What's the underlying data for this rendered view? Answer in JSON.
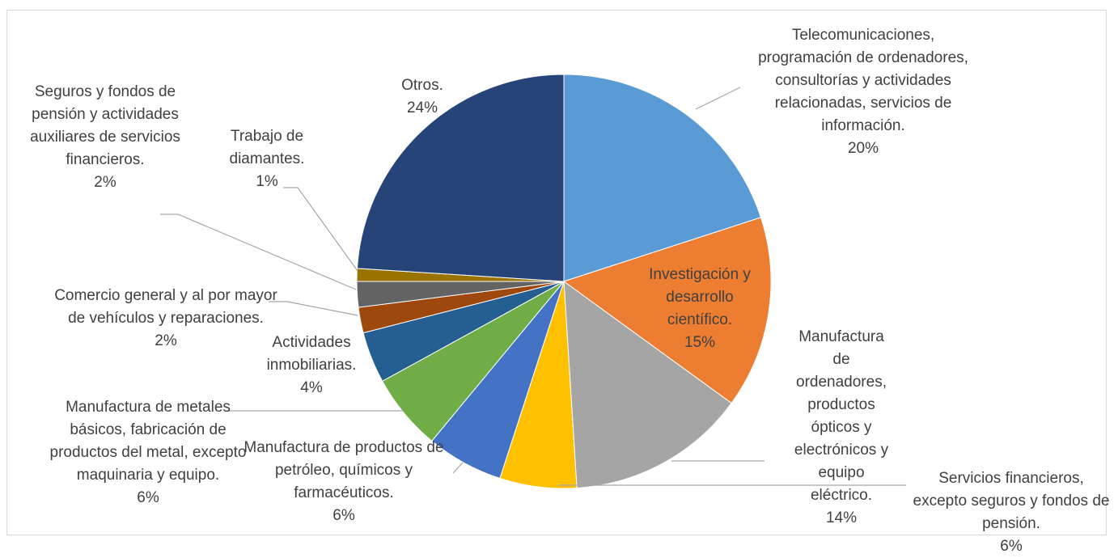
{
  "chart_data": {
    "type": "pie",
    "categories": [
      "Telecomunicaciones, programación de ordenadores, consultorías y actividades relacionadas, servicios de información.",
      "Investigación y desarrollo científico.",
      "Manufactura de ordenadores, productos ópticos y electrónicos y equipo eléctrico.",
      "Servicios financieros, excepto seguros y fondos de pensión.",
      "Manufactura de productos de petróleo, químicos y farmacéuticos.",
      "Manufactura de metales básicos, fabricación de productos del metal, excepto maquinaria y equipo.",
      "Actividades inmobiliarias.",
      "Comercio general y al por mayor de vehículos y reparaciones.",
      "Seguros y fondos de pensión y actividades auxiliares de servicios financieros.",
      "Trabajo de diamantes.",
      "Otros."
    ],
    "values": [
      20,
      15,
      14,
      6,
      6,
      6,
      4,
      2,
      2,
      1,
      24
    ],
    "value_labels": [
      "20%",
      "15%",
      "14%",
      "6%",
      "6%",
      "6%",
      "4%",
      "2%",
      "2%",
      "1%",
      "24%"
    ],
    "colors": [
      "#5b9bd5",
      "#ed7d31",
      "#a5a5a5",
      "#ffc000",
      "#4472c4",
      "#70ad47",
      "#255e91",
      "#9e480e",
      "#636363",
      "#997300",
      "#264478"
    ]
  }
}
